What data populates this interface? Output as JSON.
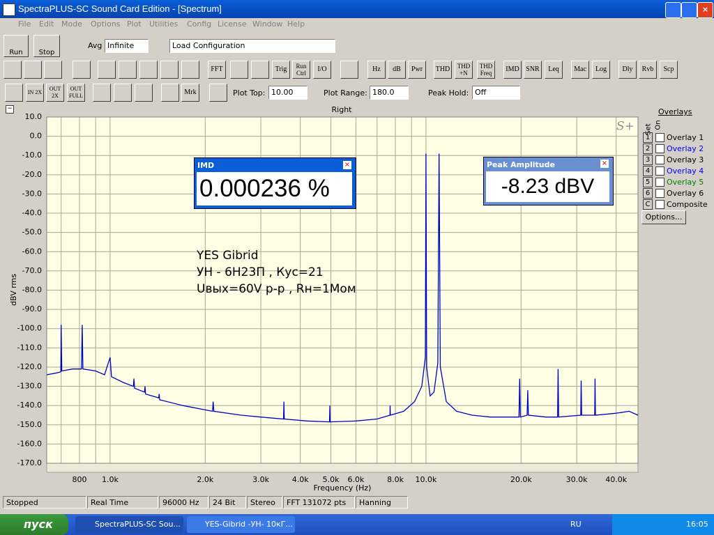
{
  "window": {
    "title": "SpectraPLUS-SC Sound Card Edition - [Spectrum]"
  },
  "menu": [
    "File",
    "Edit",
    "Mode",
    "Options",
    "Plot",
    "Utilities",
    "Config",
    "License",
    "Window",
    "Help"
  ],
  "toolbar1": {
    "run": "Run",
    "stop": "Stop",
    "avg_label": "Avg",
    "avg_value": "Infinite",
    "config": "Load Configuration"
  },
  "toolbar2": [
    "FFT",
    "Trig",
    "Run Ctrl",
    "I/O",
    "Hz",
    "dB",
    "Pwr",
    "THD",
    "THD +N",
    "THD Freq",
    "IMD",
    "SNR",
    "Leq",
    "Mac",
    "Log",
    "Dly",
    "Rvb",
    "Scp"
  ],
  "toolbar3": {
    "zoom_in": "IN 2X",
    "zoom_out": "OUT 2X",
    "zoom_full": "OUT FULL",
    "marker": "Mrk",
    "plot_top_label": "Plot Top:",
    "plot_top": "10.00",
    "plot_range_label": "Plot Range:",
    "plot_range": "180.0",
    "peak_hold_label": "Peak Hold:",
    "peak_hold": "Off"
  },
  "annotation": [
    "YES Gibrid",
    "УН - 6Н23П , Кус=21",
    "Uвых=60V p-p  , Rн=1Мом"
  ],
  "imd_window": {
    "title": "IMD",
    "value": "0.000236 %"
  },
  "peak_window": {
    "title": "Peak Amplitude",
    "value": "-8.23 dBV"
  },
  "overlays": {
    "title": "Overlays",
    "set": "Set",
    "on": "On",
    "items": [
      {
        "key": "1",
        "name": "Overlay 1",
        "color": "#000000"
      },
      {
        "key": "2",
        "name": "Overlay 2",
        "color": "#0000ff"
      },
      {
        "key": "3",
        "name": "Overlay 3",
        "color": "#000000"
      },
      {
        "key": "4",
        "name": "Overlay 4",
        "color": "#0000ff"
      },
      {
        "key": "5",
        "name": "Overlay 5",
        "color": "#008000"
      },
      {
        "key": "6",
        "name": "Overlay 6",
        "color": "#000000"
      },
      {
        "key": "C",
        "name": "Composite",
        "color": "#000000"
      }
    ],
    "options": "Options..."
  },
  "status": [
    "Stopped",
    "Real Time",
    "96000 Hz",
    "24 Bit",
    "Stereo",
    "FFT 131072 pts",
    "Hanning"
  ],
  "taskbar": {
    "start": "пуск",
    "tasks": [
      "SpectraPLUS-SC Sou...",
      "YES-Gibrid -УН- 10кГ..."
    ],
    "lang": "RU",
    "clock": "16:05"
  },
  "chart_data": {
    "type": "line",
    "title": "Right",
    "xlabel": "Frequency (Hz)",
    "ylabel": "dBV rms",
    "logo": "S+",
    "log_x": true,
    "grid": true,
    "color": "#0000cc",
    "xlim": [
      630,
      46900
    ],
    "ylim": [
      -170,
      10
    ],
    "xticks": [
      800,
      {
        "value": 1000,
        "label": "1.0k"
      },
      {
        "value": 2000,
        "label": "2.0k"
      },
      {
        "value": 3000,
        "label": "3.0k"
      },
      {
        "value": 4000,
        "label": "4.0k"
      },
      {
        "value": 5000,
        "label": "5.0k"
      },
      {
        "value": 6000,
        "label": "6.0k"
      },
      {
        "value": 8000,
        "label": "8.0k"
      },
      {
        "value": 10000,
        "label": "10.0k"
      },
      {
        "value": 20000,
        "label": "20.0k"
      },
      {
        "value": 30000,
        "label": "30.0k"
      },
      {
        "value": 40000,
        "label": "40.0k"
      }
    ],
    "x_minor_ticks": [
      700,
      900,
      7000,
      9000
    ],
    "yticks": [
      {
        "value": 10,
        "label": "10.0"
      },
      {
        "value": 0,
        "label": "0.0"
      },
      {
        "value": -10,
        "label": "-10.0"
      },
      {
        "value": -20,
        "label": "-20.0"
      },
      {
        "value": -30,
        "label": "-30.0"
      },
      {
        "value": -40,
        "label": "-40.0"
      },
      {
        "value": -50,
        "label": "-50.0"
      },
      {
        "value": -60,
        "label": "-60.0"
      },
      {
        "value": -70,
        "label": "-70.0"
      },
      {
        "value": -80,
        "label": "-80.0"
      },
      {
        "value": -90,
        "label": "-90.0"
      },
      {
        "value": -100,
        "label": "-100.0"
      },
      {
        "value": -110,
        "label": "-110.0"
      },
      {
        "value": -120,
        "label": "-120.0"
      },
      {
        "value": -130,
        "label": "-130.0"
      },
      {
        "value": -140,
        "label": "-140.0"
      },
      {
        "value": -150,
        "label": "-150.0"
      },
      {
        "value": -160,
        "label": "-160.0"
      },
      {
        "value": -170,
        "label": "-170.0"
      }
    ],
    "x": [
      630,
      680,
      698,
      700,
      703,
      760,
      812,
      816,
      820,
      900,
      960,
      1000,
      1010,
      1100,
      1185,
      1190,
      1195,
      1285,
      1290,
      1295,
      1425,
      1430,
      1435,
      1700,
      2110,
      2120,
      2130,
      2600,
      3000,
      3540,
      3550,
      3560,
      4200,
      4950,
      4960,
      4970,
      6000,
      7000,
      7690,
      7700,
      7710,
      8500,
      9200,
      9700,
      9950,
      10000,
      10050,
      10300,
      10600,
      10900,
      11000,
      11100,
      11600,
      12500,
      14000,
      16000,
      19700,
      19800,
      19900,
      20900,
      21000,
      21100,
      24000,
      26100,
      26200,
      26300,
      30900,
      31000,
      31100,
      34200,
      34300,
      34400,
      40000,
      44000,
      46900
    ],
    "values": [
      -124,
      -123,
      -122.5,
      -98,
      -122,
      -121,
      -121,
      -98,
      -121,
      -122,
      -124,
      -115,
      -125,
      -128,
      -130,
      -126,
      -131,
      -133,
      -130,
      -134,
      -136,
      -134,
      -137,
      -140,
      -143,
      -138,
      -143,
      -145,
      -146,
      -147,
      -138,
      -147,
      -148,
      -148.5,
      -140,
      -148.5,
      -148,
      -147,
      -145,
      -140,
      -145,
      -143,
      -138,
      -130,
      -115,
      -9,
      -120,
      -135,
      -133,
      -118,
      -9,
      -120,
      -138,
      -143,
      -145,
      -146,
      -146,
      -126,
      -146,
      -145,
      -132,
      -145,
      -146,
      -146,
      -121,
      -146,
      -145,
      -127,
      -145,
      -145,
      -126,
      -145,
      -144,
      -143,
      -145
    ]
  }
}
